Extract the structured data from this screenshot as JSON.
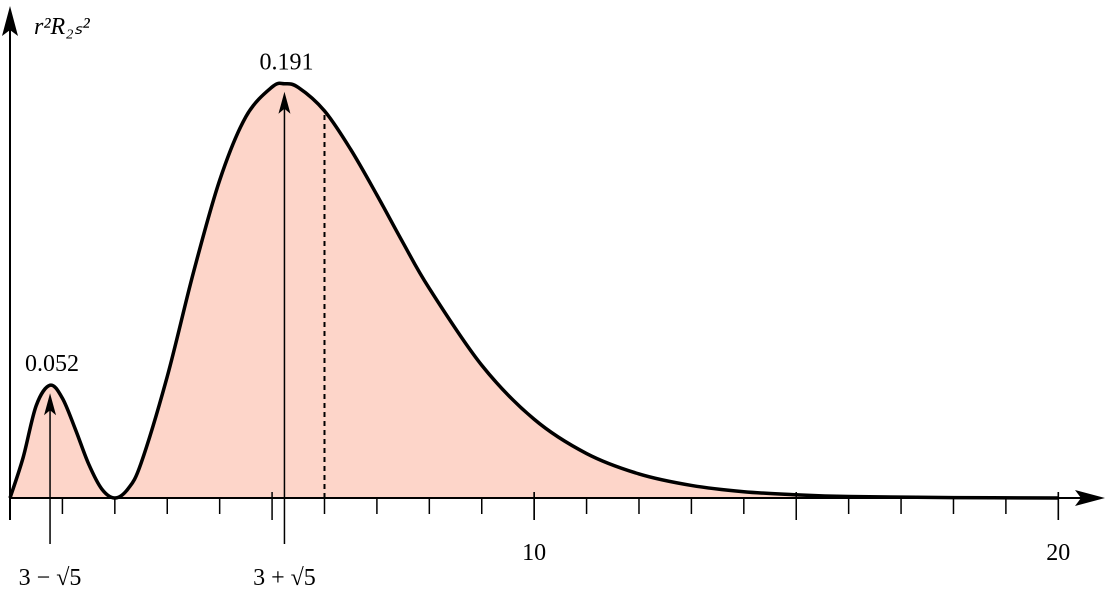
{
  "chart_data": {
    "type": "area",
    "y_label": "r²R₂ₛ²",
    "x": [
      0,
      0.25,
      0.5,
      0.764,
      1,
      1.25,
      1.5,
      1.75,
      2,
      2.25,
      2.5,
      3,
      3.5,
      4,
      4.5,
      5,
      5.236,
      5.5,
      6,
      6.5,
      7,
      7.5,
      8,
      9,
      10,
      11,
      12,
      13,
      14,
      15,
      16,
      18,
      20
    ],
    "series": [
      {
        "color": "#fdd5c9",
        "line_color": "#000000",
        "values": [
          0,
          0.0186,
          0.0426,
          0.052,
          0.046,
          0.0315,
          0.0157,
          0.0042,
          0,
          0.0042,
          0.016,
          0.056,
          0.104,
          0.1465,
          0.1758,
          0.1895,
          0.191,
          0.1893,
          0.1785,
          0.1607,
          0.1397,
          0.1176,
          0.0966,
          0.0612,
          0.0363,
          0.0205,
          0.0111,
          0.0058,
          0.0029,
          0.0015,
          0.0007,
          0.0002,
          0
        ]
      }
    ],
    "xlim": [
      0,
      20.7
    ],
    "ylim": [
      0,
      0.225
    ],
    "xticks": [
      10,
      20
    ],
    "xminor_step": 1,
    "xmajor_step": 5,
    "annotations": [
      {
        "x": 0.764,
        "y": 0.052,
        "label": "0.052",
        "x_label": "3 − √5"
      },
      {
        "x": 5.236,
        "y": 0.191,
        "label": "0.191",
        "x_label": "3 + √5"
      }
    ],
    "dashed_x": 6
  }
}
